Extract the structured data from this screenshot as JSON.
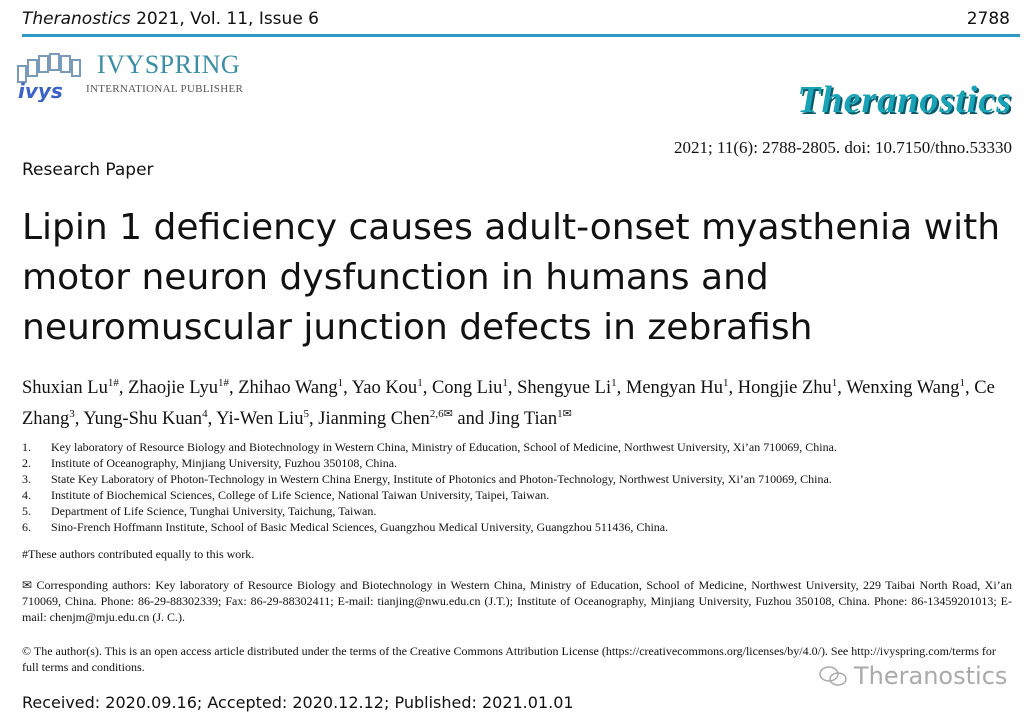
{
  "header": {
    "journal": "Theranostics",
    "volume_info": "2021, Vol. 11, Issue 6",
    "page": "2788"
  },
  "publisher_logo": {
    "name": "IVYSPRING",
    "subtitle": "INTERNATIONAL PUBLISHER",
    "mark": "ivys"
  },
  "journal_logo": "Theranostics",
  "citation": "2021; 11(6): 2788-2805. doi: 10.7150/thno.53330",
  "paper_type": "Research Paper",
  "title_lines": [
    "Lipin 1 deficiency causes adult-onset myasthenia with",
    "motor neuron dysfunction in humans and",
    "neuromuscular junction defects in zebrafish"
  ],
  "authors": [
    {
      "name": "Shuxian Lu",
      "sup": "1#"
    },
    {
      "name": "Zhaojie Lyu",
      "sup": "1#"
    },
    {
      "name": "Zhihao Wang",
      "sup": "1"
    },
    {
      "name": "Yao Kou",
      "sup": "1"
    },
    {
      "name": "Cong Liu",
      "sup": "1"
    },
    {
      "name": "Shengyue Li",
      "sup": "1"
    },
    {
      "name": "Mengyan Hu",
      "sup": "1"
    },
    {
      "name": "Hongjie Zhu",
      "sup": "1"
    },
    {
      "name": "Wenxing Wang",
      "sup": "1"
    },
    {
      "name": "Ce Zhang",
      "sup": "3"
    },
    {
      "name": "Yung-Shu Kuan",
      "sup": "4"
    },
    {
      "name": "Yi-Wen Liu",
      "sup": "5"
    },
    {
      "name": "Jianming Chen",
      "sup": "2,6✉"
    },
    {
      "name": "Jing Tian",
      "sup": "1✉"
    }
  ],
  "affiliations": [
    {
      "n": "1.",
      "text": "Key laboratory of Resource Biology and Biotechnology in Western China, Ministry of Education, School of Medicine, Northwest University, Xi’an 710069, China."
    },
    {
      "n": "2.",
      "text": "Institute of Oceanography, Minjiang University, Fuzhou 350108, China."
    },
    {
      "n": "3.",
      "text": "State Key Laboratory of Photon-Technology in Western China Energy, Institute of Photonics and Photon-Technology, Northwest University, Xi’an 710069, China."
    },
    {
      "n": "4.",
      "text": "Institute of Biochemical Sciences, College of Life Science, National Taiwan University, Taipei, Taiwan."
    },
    {
      "n": "5.",
      "text": "Department of Life Science, Tunghai University, Taichung, Taiwan."
    },
    {
      "n": "6.",
      "text": "Sino-French Hoffmann Institute, School of Basic Medical Sciences, Guangzhou Medical University, Guangzhou 511436, China."
    }
  ],
  "equal_contribution": "#These authors contributed equally to this work.",
  "corresponding": "✉ Corresponding authors: Key laboratory of Resource Biology and Biotechnology in Western China, Ministry of Education, School of Medicine, Northwest University, 229 Taibai North Road, Xi’an 710069, China. Phone: 86-29-88302339; Fax: 86-29-88302411; E-mail: tianjing@nwu.edu.cn (J.T.); Institute of Oceanography, Minjiang University, Fuzhou 350108, China. Phone: 86-13459201013; E-mail: chenjm@mju.edu.cn (J. C.).",
  "license": "© The author(s). This is an open access article distributed under the terms of the Creative Commons Attribution License (https://creativecommons.org/licenses/by/4.0/). See http://ivyspring.com/terms for full terms and conditions.",
  "dates": "Received: 2020.09.16; Accepted: 2020.12.12; Published: 2021.01.01",
  "watermark": {
    "icon": "wechat-icon",
    "text": "Theranostics"
  },
  "colors": {
    "rule": "#2d9ac3",
    "logo": "#1aa3b6"
  }
}
